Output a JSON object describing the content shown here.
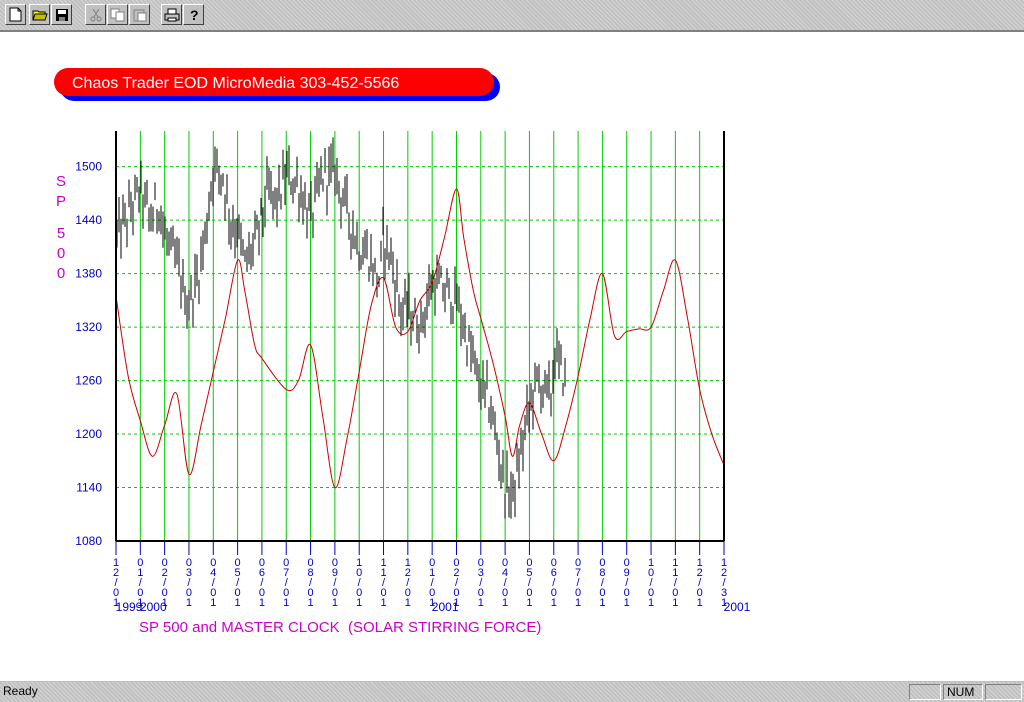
{
  "toolbar": {
    "buttons": [
      {
        "icon": "new-document-icon",
        "enabled": true
      },
      {
        "icon": "open-folder-icon",
        "enabled": true
      },
      {
        "icon": "save-disk-icon",
        "enabled": true
      },
      {
        "icon": "cut-scissors-icon",
        "enabled": false
      },
      {
        "icon": "copy-icon",
        "enabled": false
      },
      {
        "icon": "paste-icon",
        "enabled": false
      },
      {
        "icon": "print-icon",
        "enabled": true
      },
      {
        "icon": "help-icon",
        "enabled": true
      }
    ]
  },
  "status": {
    "text": "Ready",
    "num": "NUM"
  },
  "colors": {
    "banner_red": "#ff0000",
    "banner_shadow": "#0000ff",
    "price_bars": "#000000",
    "clock_line": "#cc0000",
    "grid": "#00cc00",
    "axis_text": "#0000cc",
    "label_magenta": "#cc00cc"
  },
  "chart_data": {
    "type": "line",
    "title": "Chaos Trader EOD MicroMedia 303-452-5566",
    "ylabel": "SP 500",
    "xlabel": "SP 500 and MASTER CLOCK  (SOLAR STIRRING FORCE)",
    "ylim": [
      1080,
      1540
    ],
    "yticks": [
      "1080",
      "1140",
      "1200",
      "1260",
      "1320",
      "1380",
      "1440",
      "1500"
    ],
    "xtick_labels": [
      "12/01",
      "01/01",
      "02/01",
      "03/01",
      "04/01",
      "05/01",
      "06/01",
      "07/01",
      "08/01",
      "09/01",
      "10/01",
      "11/01",
      "12/01",
      "01/01",
      "02/01",
      "03/01",
      "04/01",
      "05/01",
      "06/01",
      "07/01",
      "08/01",
      "09/01",
      "10/01",
      "11/01",
      "12/01",
      "12/31"
    ],
    "year_labels": [
      {
        "text": "1999",
        "index": 0
      },
      {
        "text": "2000",
        "index": 1
      },
      {
        "text": "2001",
        "index": 13
      },
      {
        "text": "2001",
        "index": 25
      }
    ],
    "grid": true,
    "series": [
      {
        "kind": "price",
        "month_index": [
          0,
          0.5,
          1,
          1.4,
          1.8,
          2,
          2.5,
          2.8,
          3,
          3.4,
          3.7,
          4,
          4.4,
          4.7,
          5,
          5.3,
          5.8,
          6.2,
          6.6,
          7,
          7.5,
          8,
          8.5,
          9,
          9.5,
          10,
          10.4,
          10.8,
          11,
          11.3,
          11.7,
          12,
          12.5,
          13,
          13.5,
          14,
          14.4,
          14.8,
          15,
          15.3,
          15.6,
          16,
          16.3,
          16.6,
          16.8,
          17,
          17.3,
          17.6,
          17.9,
          18,
          18.5
        ],
        "close": [
          1420,
          1445,
          1475,
          1440,
          1460,
          1420,
          1390,
          1360,
          1345,
          1380,
          1430,
          1500,
          1490,
          1440,
          1430,
          1390,
          1420,
          1470,
          1460,
          1490,
          1480,
          1440,
          1490,
          1495,
          1450,
          1410,
          1400,
          1370,
          1420,
          1400,
          1340,
          1340,
          1320,
          1370,
          1360,
          1350,
          1310,
          1270,
          1250,
          1240,
          1200,
          1140,
          1130,
          1170,
          1200,
          1230,
          1260,
          1250,
          1240,
          1290,
          1260
        ]
      },
      {
        "kind": "master_clock",
        "month_index": [
          0,
          0.5,
          1,
          1.5,
          2,
          2.5,
          3,
          3.5,
          4,
          4.5,
          5,
          5.3,
          5.7,
          6,
          7,
          7.5,
          8,
          8.5,
          9,
          9.5,
          10,
          10.5,
          11,
          11.5,
          12,
          12.5,
          13,
          13.5,
          14,
          14.3,
          14.7,
          15,
          15.5,
          16,
          16.3,
          16.6,
          17,
          17.5,
          18,
          18.5,
          19,
          19.5,
          20,
          20.5,
          21,
          21.5,
          22,
          22.5,
          23,
          23.5,
          24,
          24.5,
          25
        ],
        "value": [
          1355,
          1265,
          1215,
          1175,
          1210,
          1245,
          1155,
          1210,
          1270,
          1330,
          1395,
          1360,
          1300,
          1285,
          1250,
          1260,
          1300,
          1220,
          1140,
          1195,
          1270,
          1345,
          1375,
          1320,
          1315,
          1350,
          1370,
          1420,
          1475,
          1420,
          1360,
          1330,
          1280,
          1220,
          1175,
          1210,
          1235,
          1200,
          1170,
          1210,
          1265,
          1330,
          1380,
          1310,
          1315,
          1318,
          1320,
          1360,
          1395,
          1330,
          1250,
          1200,
          1165
        ]
      }
    ]
  }
}
